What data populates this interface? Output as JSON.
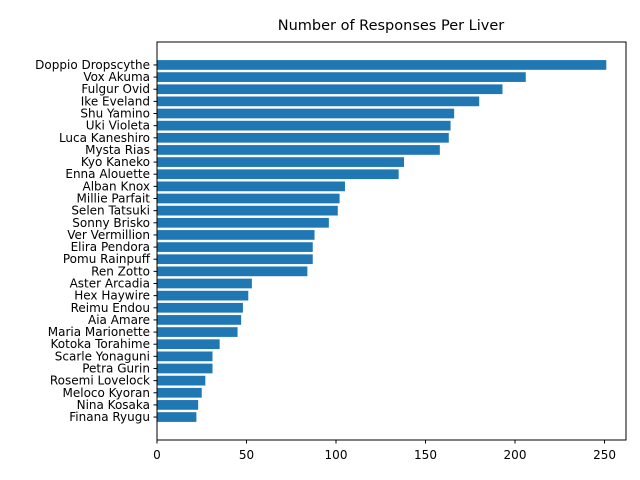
{
  "chart_data": {
    "type": "bar",
    "orientation": "horizontal",
    "title": "Number of Responses Per Liver",
    "xlabel": "",
    "ylabel": "",
    "bar_color": "#1f77b4",
    "xlim": [
      0,
      262
    ],
    "xticks": [
      0,
      50,
      100,
      150,
      200,
      250
    ],
    "grid": false,
    "categories": [
      "Doppio Dropscythe",
      "Vox Akuma",
      "Fulgur Ovid",
      "Ike Eveland",
      "Shu Yamino",
      "Uki Violeta",
      "Luca Kaneshiro",
      "Mysta Rias",
      "Kyo Kaneko",
      "Enna Alouette",
      "Alban Knox",
      "Millie Parfait",
      "Selen Tatsuki",
      "Sonny Brisko",
      "Ver Vermillion",
      "Elira Pendora",
      "Pomu Rainpuff",
      "Ren Zotto",
      "Aster Arcadia",
      "Hex Haywire",
      "Reimu Endou",
      "Aia Amare",
      "Maria Marionette",
      "Kotoka Torahime",
      "Scarle Yonaguni",
      "Petra Gurin",
      "Rosemi Lovelock",
      "Meloco Kyoran",
      "Nina Kosaka",
      "Finana Ryugu"
    ],
    "values": [
      251,
      206,
      193,
      180,
      166,
      164,
      163,
      158,
      138,
      135,
      105,
      102,
      101,
      96,
      88,
      87,
      87,
      84,
      53,
      51,
      48,
      47,
      45,
      35,
      31,
      31,
      27,
      25,
      23,
      22
    ]
  }
}
